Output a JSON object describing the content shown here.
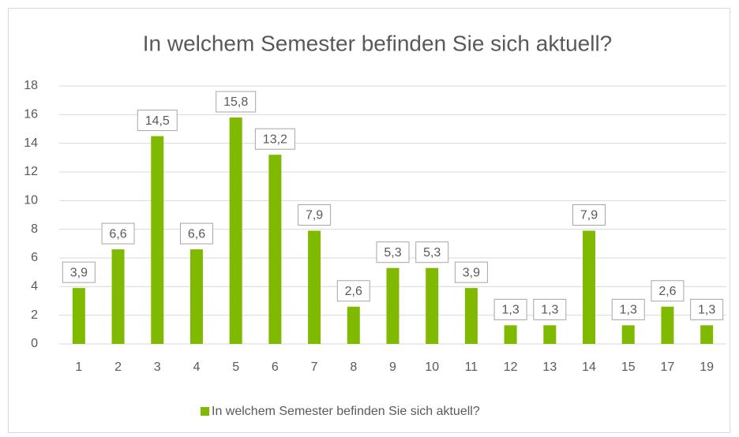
{
  "chart_data": {
    "type": "bar",
    "title": "In welchem Semester befinden Sie sich aktuell?",
    "categories": [
      "1",
      "2",
      "3",
      "4",
      "5",
      "6",
      "7",
      "8",
      "9",
      "10",
      "11",
      "12",
      "13",
      "14",
      "15",
      "17",
      "19"
    ],
    "series": [
      {
        "name": "In welchem Semester befinden Sie sich aktuell?",
        "color": "#7fba00",
        "values": [
          3.9,
          6.6,
          14.5,
          6.6,
          15.8,
          13.2,
          7.9,
          2.6,
          5.3,
          5.3,
          3.9,
          1.3,
          1.3,
          7.9,
          1.3,
          2.6,
          1.3
        ],
        "value_labels": [
          "3,9",
          "6,6",
          "14,5",
          "6,6",
          "15,8",
          "13,2",
          "7,9",
          "2,6",
          "5,3",
          "5,3",
          "3,9",
          "1,3",
          "1,3",
          "7,9",
          "1,3",
          "2,6",
          "1,3"
        ]
      }
    ],
    "ylim": [
      0,
      18
    ],
    "yticks": [
      0,
      2,
      4,
      6,
      8,
      10,
      12,
      14,
      16,
      18
    ],
    "grid": true,
    "legend": "bottom"
  }
}
